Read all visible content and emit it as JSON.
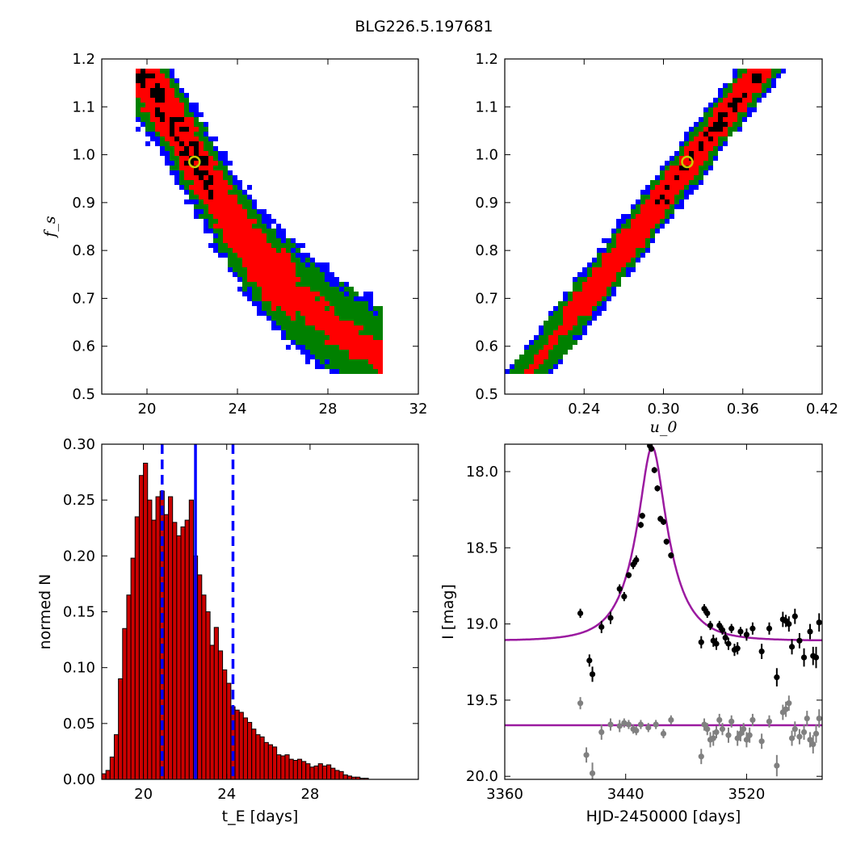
{
  "figure": {
    "title": "BLG226.5.197681"
  },
  "chart_data": [
    {
      "id": "fs-vs-tE",
      "type": "heatmap",
      "title": "",
      "xlabel": "",
      "ylabel": "f_s",
      "xlim": [
        18,
        32
      ],
      "ylim": [
        0.5,
        1.2
      ],
      "xticks": [
        20,
        24,
        28,
        32
      ],
      "yticks": [
        0.5,
        0.6,
        0.7,
        0.8,
        0.9,
        1.0,
        1.1,
        1.2
      ],
      "colors": {
        "outer": "#0000ff",
        "middle": "#008000",
        "inner": "#ff0000",
        "core": "#000000",
        "marker": "#cccc00"
      },
      "band": [
        {
          "x": 19.5,
          "y": 1.18,
          "w3": 0.5,
          "w2": 0.42,
          "w1": 0.28
        },
        {
          "x": 20.5,
          "y": 1.12,
          "w3": 0.5,
          "w2": 0.42,
          "w1": 0.28
        },
        {
          "x": 21.5,
          "y": 1.04,
          "w3": 0.5,
          "w2": 0.42,
          "w1": 0.28
        },
        {
          "x": 22.5,
          "y": 0.96,
          "w3": 0.5,
          "w2": 0.42,
          "w1": 0.28
        },
        {
          "x": 23.5,
          "y": 0.88,
          "w3": 0.5,
          "w2": 0.42,
          "w1": 0.28
        },
        {
          "x": 24.5,
          "y": 0.81,
          "w3": 0.5,
          "w2": 0.42,
          "w1": 0.28
        },
        {
          "x": 25.5,
          "y": 0.75,
          "w3": 0.5,
          "w2": 0.42,
          "w1": 0.28
        },
        {
          "x": 26.5,
          "y": 0.71,
          "w3": 0.5,
          "w2": 0.42,
          "w1": 0.28
        },
        {
          "x": 27.5,
          "y": 0.67,
          "w3": 0.5,
          "w2": 0.42,
          "w1": 0.28
        },
        {
          "x": 28.5,
          "y": 0.63,
          "w3": 0.5,
          "w2": 0.42,
          "w1": 0.28
        },
        {
          "x": 29.5,
          "y": 0.6,
          "w3": 0.5,
          "w2": 0.42,
          "w1": 0.28
        },
        {
          "x": 30.5,
          "y": 0.57,
          "w3": 0.5,
          "w2": 0.42,
          "w1": 0.28
        }
      ],
      "best_fit": {
        "x": 22.1,
        "y": 0.985
      }
    },
    {
      "id": "fs-vs-u0",
      "type": "heatmap",
      "title": "",
      "xlabel": "u_0",
      "ylabel": "",
      "xlim": [
        0.18,
        0.42
      ],
      "ylim": [
        0.5,
        1.2
      ],
      "xticks": [
        0.24,
        0.3,
        0.36,
        0.42
      ],
      "xticklabels": [
        "0.24",
        "0.30",
        "0.36",
        "0.42"
      ],
      "yticks": [
        0.5,
        0.6,
        0.7,
        0.8,
        0.9,
        1.0,
        1.1,
        1.2
      ],
      "colors": {
        "outer": "#0000ff",
        "middle": "#008000",
        "inner": "#ff0000",
        "core": "#000000",
        "marker": "#cccc00"
      },
      "band_line": {
        "x0": 0.2,
        "y0": 0.55,
        "x1": 0.373,
        "y1": 1.175
      },
      "best_fit": {
        "x": 0.318,
        "y": 0.985
      }
    },
    {
      "id": "tE-histogram",
      "type": "bar",
      "title": "",
      "xlabel": "t_E [days]",
      "ylabel": "normed N",
      "xlim": [
        18.0,
        33.2
      ],
      "ylim": [
        0.0,
        0.3
      ],
      "xticks": [
        20,
        24,
        28
      ],
      "yticks": [
        0.0,
        0.05,
        0.1,
        0.15,
        0.2,
        0.25,
        0.3
      ],
      "bin_width": 0.2,
      "bin_start": 18.0,
      "values": [
        0.005,
        0.008,
        0.02,
        0.04,
        0.09,
        0.135,
        0.165,
        0.198,
        0.235,
        0.272,
        0.283,
        0.25,
        0.232,
        0.253,
        0.258,
        0.237,
        0.253,
        0.23,
        0.218,
        0.226,
        0.232,
        0.25,
        0.2,
        0.183,
        0.165,
        0.15,
        0.12,
        0.136,
        0.115,
        0.098,
        0.086,
        0.065,
        0.062,
        0.06,
        0.055,
        0.051,
        0.045,
        0.04,
        0.038,
        0.033,
        0.031,
        0.029,
        0.022,
        0.021,
        0.022,
        0.018,
        0.017,
        0.018,
        0.016,
        0.014,
        0.011,
        0.012,
        0.014,
        0.012,
        0.013,
        0.01,
        0.008,
        0.007,
        0.004,
        0.003,
        0.002,
        0.002,
        0.001,
        0.001
      ],
      "bar_color": "#cc0000",
      "vlines": [
        {
          "x": 20.9,
          "style": "dashed"
        },
        {
          "x": 22.5,
          "style": "solid"
        },
        {
          "x": 24.3,
          "style": "dashed"
        }
      ],
      "vline_color": "#0000ff"
    },
    {
      "id": "light-curve",
      "type": "scatter",
      "title": "",
      "xlabel": "HJD-2450000 [days]",
      "ylabel": "I [mag]",
      "xlim": [
        3360,
        3570
      ],
      "ylim": [
        20.02,
        17.82
      ],
      "xticks": [
        3360,
        3440,
        3520
      ],
      "yticks": [
        18.0,
        18.5,
        19.0,
        19.5,
        20.0
      ],
      "yticklabels": [
        "18.0",
        "18.5",
        "19.0",
        "19.5",
        "20.0"
      ],
      "model": {
        "t0": 3457.5,
        "tE": 22.1,
        "u0": 0.318,
        "fs": 0.985,
        "ibase": 19.11,
        "color": "#9b1aa0"
      },
      "flat_model": {
        "i": 19.665,
        "color": "#9b1aa0"
      },
      "series": [
        {
          "color": "#000000",
          "points": [
            [
              3410,
              18.93,
              0.03
            ],
            [
              3416,
              19.24,
              0.04
            ],
            [
              3418,
              19.33,
              0.05
            ],
            [
              3424,
              19.02,
              0.04
            ],
            [
              3430,
              18.96,
              0.04
            ],
            [
              3436,
              18.77,
              0.03
            ],
            [
              3439,
              18.82,
              0.03
            ],
            [
              3442,
              18.68,
              0.02
            ],
            [
              3445,
              18.61,
              0.03
            ],
            [
              3447,
              18.58,
              0.03
            ],
            [
              3450,
              18.35,
              0.02
            ],
            [
              3451,
              18.29,
              0.02
            ],
            [
              3456,
              17.83,
              0.02
            ],
            [
              3457,
              17.85,
              0.02
            ],
            [
              3459,
              17.99,
              0.02
            ],
            [
              3461,
              18.11,
              0.02
            ],
            [
              3463,
              18.31,
              0.02
            ],
            [
              3465,
              18.33,
              0.02
            ],
            [
              3467,
              18.46,
              0.02
            ],
            [
              3470,
              18.55,
              0.02
            ],
            [
              3490,
              19.12,
              0.04
            ],
            [
              3492,
              18.9,
              0.03
            ],
            [
              3494,
              18.93,
              0.03
            ],
            [
              3496,
              19.01,
              0.03
            ],
            [
              3498,
              19.11,
              0.04
            ],
            [
              3500,
              19.13,
              0.04
            ],
            [
              3502,
              19.01,
              0.03
            ],
            [
              3504,
              19.04,
              0.03
            ],
            [
              3506,
              19.09,
              0.04
            ],
            [
              3508,
              19.13,
              0.04
            ],
            [
              3510,
              19.03,
              0.03
            ],
            [
              3512,
              19.17,
              0.04
            ],
            [
              3514,
              19.16,
              0.04
            ],
            [
              3516,
              19.05,
              0.03
            ],
            [
              3520,
              19.07,
              0.04
            ],
            [
              3524,
              19.03,
              0.04
            ],
            [
              3530,
              19.18,
              0.05
            ],
            [
              3535,
              19.03,
              0.04
            ],
            [
              3540,
              19.35,
              0.06
            ],
            [
              3544,
              18.97,
              0.05
            ],
            [
              3546,
              18.98,
              0.04
            ],
            [
              3548,
              19.0,
              0.05
            ],
            [
              3550,
              19.15,
              0.05
            ],
            [
              3552,
              18.95,
              0.05
            ],
            [
              3555,
              19.11,
              0.05
            ],
            [
              3558,
              19.22,
              0.06
            ],
            [
              3562,
              19.05,
              0.05
            ],
            [
              3564,
              19.21,
              0.06
            ],
            [
              3566,
              19.22,
              0.07
            ],
            [
              3568,
              18.99,
              0.06
            ]
          ]
        },
        {
          "color": "#808080",
          "points": [
            [
              3410,
              19.52,
              0.04
            ],
            [
              3414,
              19.86,
              0.05
            ],
            [
              3418,
              19.98,
              0.07
            ],
            [
              3424,
              19.71,
              0.05
            ],
            [
              3430,
              19.66,
              0.04
            ],
            [
              3436,
              19.67,
              0.04
            ],
            [
              3439,
              19.65,
              0.03
            ],
            [
              3442,
              19.66,
              0.03
            ],
            [
              3445,
              19.69,
              0.03
            ],
            [
              3447,
              19.7,
              0.03
            ],
            [
              3450,
              19.66,
              0.03
            ],
            [
              3455,
              19.68,
              0.03
            ],
            [
              3460,
              19.66,
              0.03
            ],
            [
              3465,
              19.72,
              0.03
            ],
            [
              3470,
              19.63,
              0.03
            ],
            [
              3490,
              19.87,
              0.05
            ],
            [
              3492,
              19.66,
              0.04
            ],
            [
              3494,
              19.69,
              0.04
            ],
            [
              3496,
              19.76,
              0.05
            ],
            [
              3498,
              19.75,
              0.05
            ],
            [
              3500,
              19.71,
              0.04
            ],
            [
              3502,
              19.63,
              0.04
            ],
            [
              3504,
              19.69,
              0.04
            ],
            [
              3508,
              19.73,
              0.05
            ],
            [
              3510,
              19.64,
              0.04
            ],
            [
              3514,
              19.75,
              0.05
            ],
            [
              3516,
              19.72,
              0.05
            ],
            [
              3518,
              19.69,
              0.04
            ],
            [
              3520,
              19.76,
              0.05
            ],
            [
              3522,
              19.73,
              0.05
            ],
            [
              3524,
              19.63,
              0.04
            ],
            [
              3530,
              19.77,
              0.05
            ],
            [
              3535,
              19.64,
              0.04
            ],
            [
              3540,
              19.93,
              0.07
            ],
            [
              3544,
              19.58,
              0.05
            ],
            [
              3546,
              19.56,
              0.05
            ],
            [
              3548,
              19.52,
              0.05
            ],
            [
              3550,
              19.75,
              0.05
            ],
            [
              3552,
              19.69,
              0.05
            ],
            [
              3555,
              19.74,
              0.05
            ],
            [
              3558,
              19.71,
              0.05
            ],
            [
              3560,
              19.62,
              0.05
            ],
            [
              3562,
              19.76,
              0.05
            ],
            [
              3564,
              19.79,
              0.06
            ],
            [
              3566,
              19.72,
              0.06
            ],
            [
              3568,
              19.62,
              0.06
            ]
          ]
        }
      ]
    }
  ]
}
